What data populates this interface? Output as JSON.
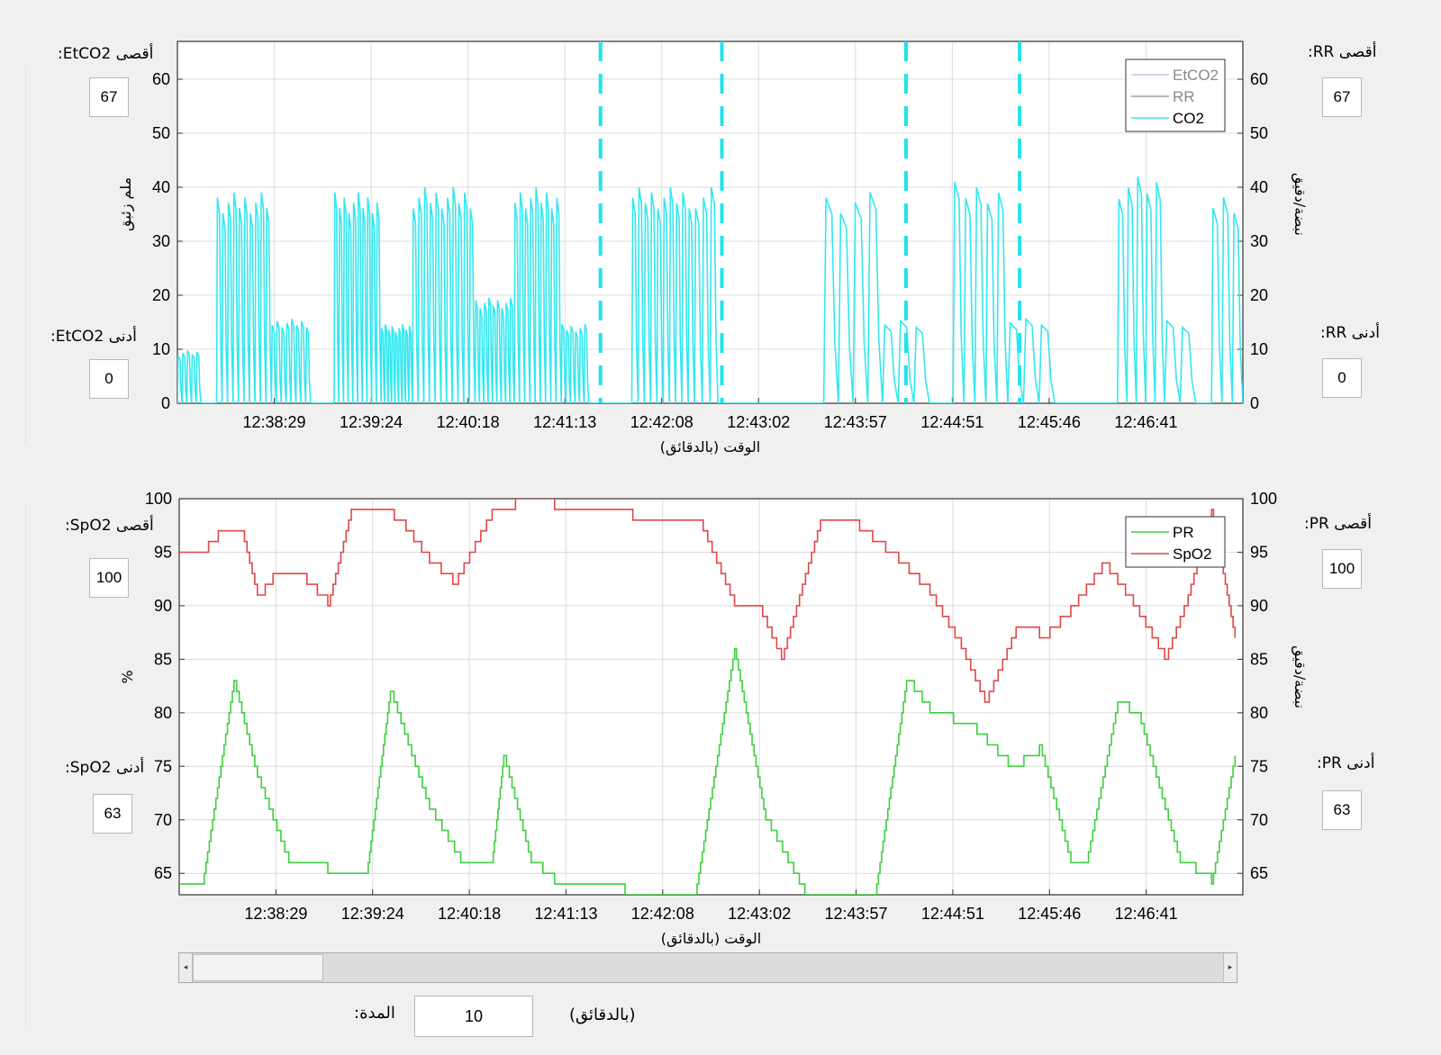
{
  "top_panel": {
    "etco2_max_label": "أقصى EtCO2:",
    "etco2_max_value": "67",
    "etco2_min_label": "أدنى EtCO2:",
    "etco2_min_value": "0",
    "rr_max_label": "أقصى RR:",
    "rr_max_value": "67",
    "rr_min_label": "أدنى RR:",
    "rr_min_value": "0"
  },
  "bottom_panel": {
    "spo2_max_label": "أقصى SpO2:",
    "spo2_max_value": "100",
    "spo2_min_label": "أدنى SpO2:",
    "spo2_min_value": "63",
    "pr_max_label": "أقصى PR:",
    "pr_max_value": "100",
    "pr_min_label": "أدنى PR:",
    "pr_min_value": "63"
  },
  "controls": {
    "duration_label": "المدة:",
    "duration_value": "10",
    "duration_unit": "(بالدقائق)"
  },
  "chart_data": [
    {
      "type": "line",
      "xlabel": "الوقت (بالدقائق)",
      "ylabel_left": "ملم زئبق",
      "ylabel_right": "نبضة/دقيق",
      "x_ticks": [
        "12:38:29",
        "12:39:24",
        "12:40:18",
        "12:41:13",
        "12:42:08",
        "12:43:02",
        "12:43:57",
        "12:44:51",
        "12:45:46",
        "12:46:41"
      ],
      "ylim": [
        0,
        67
      ],
      "yticks": [
        0,
        10,
        20,
        30,
        40,
        50,
        60
      ],
      "grid": true,
      "legend_position": "top-right",
      "legend": [
        "EtCO2",
        "RR",
        "CO2"
      ],
      "series": [
        {
          "name": "EtCO2",
          "color": "#c9c6ec",
          "values": []
        },
        {
          "name": "RR",
          "color": "#a0a0a0",
          "values": []
        },
        {
          "name": "CO2",
          "color": "#33e8f0",
          "bursts": [
            {
              "t_start": 0.0,
              "t_end": 0.3,
              "peak": 10,
              "cycles": 5
            },
            {
              "t_start": 0.5,
              "t_end": 1.2,
              "peak": 40,
              "cycles": 10
            },
            {
              "t_start": 1.2,
              "t_end": 1.7,
              "peak": 16,
              "cycles": 8
            },
            {
              "t_start": 2.0,
              "t_end": 2.6,
              "peak": 40,
              "cycles": 10
            },
            {
              "t_start": 2.6,
              "t_end": 3.0,
              "peak": 15,
              "cycles": 9
            },
            {
              "t_start": 3.0,
              "t_end": 3.8,
              "peak": 41,
              "cycles": 11
            },
            {
              "t_start": 3.8,
              "t_end": 4.3,
              "peak": 20,
              "cycles": 9
            },
            {
              "t_start": 4.3,
              "t_end": 4.9,
              "peak": 41,
              "cycles": 9
            },
            {
              "t_start": 4.9,
              "t_end": 5.25,
              "peak": 15,
              "cycles": 6
            },
            {
              "t_start": 5.8,
              "t_end": 6.6,
              "peak": 41,
              "cycles": 10
            },
            {
              "t_start": 6.6,
              "t_end": 6.9,
              "peak": 41,
              "cycles": 3
            },
            {
              "t_start": 8.25,
              "t_end": 9.0,
              "peak": 40,
              "cycles": 4
            },
            {
              "t_start": 9.0,
              "t_end": 9.6,
              "peak": 16,
              "cycles": 3
            },
            {
              "t_start": 9.9,
              "t_end": 10.6,
              "peak": 42,
              "cycles": 5
            },
            {
              "t_start": 10.6,
              "t_end": 11.2,
              "peak": 16,
              "cycles": 3
            },
            {
              "t_start": 12.0,
              "t_end": 12.6,
              "peak": 43,
              "cycles": 5
            },
            {
              "t_start": 12.6,
              "t_end": 13.0,
              "peak": 16,
              "cycles": 2
            },
            {
              "t_start": 13.2,
              "t_end": 13.6,
              "peak": 40,
              "cycles": 3
            }
          ]
        }
      ],
      "event_markers_x": [
        5.4,
        6.95,
        9.3,
        10.75
      ]
    },
    {
      "type": "line",
      "xlabel": "الوقت (بالدقائق)",
      "ylabel_left": "%",
      "ylabel_right": "نبضة/دقيق",
      "x_ticks": [
        "12:38:29",
        "12:39:24",
        "12:40:18",
        "12:41:13",
        "12:42:08",
        "12:43:02",
        "12:43:57",
        "12:44:51",
        "12:45:46",
        "12:46:41"
      ],
      "ylim": [
        63,
        100
      ],
      "yticks": [
        65,
        70,
        75,
        80,
        85,
        90,
        95,
        100
      ],
      "grid": true,
      "legend_position": "top-right",
      "legend": [
        "PR",
        "SpO2"
      ],
      "series": [
        {
          "name": "PR",
          "color": "#3ecf3e",
          "t": [
            0,
            0.3,
            0.7,
            1.0,
            1.4,
            1.9,
            2.4,
            2.7,
            3.2,
            3.6,
            4.0,
            4.15,
            4.5,
            4.8,
            5.3,
            5.7,
            6.2,
            6.6,
            7.1,
            7.5,
            8.0,
            8.5,
            8.9,
            9.3,
            9.6,
            10.2,
            10.6,
            11.0,
            11.4,
            11.6,
            12.0,
            12.3,
            12.8,
            13.2,
            13.5
          ],
          "values": [
            64,
            64,
            83,
            74,
            66,
            65,
            65,
            82,
            71,
            66,
            66,
            76,
            66,
            64,
            64,
            63,
            63,
            63,
            86,
            70,
            63,
            63,
            63,
            83,
            80,
            78,
            75,
            77,
            66,
            66,
            81,
            79,
            66,
            64,
            76
          ]
        },
        {
          "name": "SpO2",
          "color": "#e04848",
          "t": [
            0,
            0.25,
            0.5,
            0.8,
            1.0,
            1.2,
            1.5,
            1.9,
            2.2,
            2.6,
            2.9,
            3.2,
            3.5,
            4.0,
            4.3,
            4.8,
            5.3,
            5.8,
            6.3,
            6.7,
            7.1,
            7.4,
            7.7,
            8.2,
            8.7,
            9.2,
            9.6,
            10.0,
            10.3,
            10.7,
            11.0,
            11.4,
            11.8,
            12.2,
            12.6,
            12.9,
            13.2,
            13.5
          ],
          "values": [
            95,
            95,
            97,
            97,
            91,
            93,
            93,
            90,
            99,
            99,
            97,
            94,
            92,
            99,
            100,
            99,
            99,
            98,
            98,
            97,
            90,
            90,
            85,
            98,
            97,
            94,
            91,
            86,
            81,
            88,
            87,
            90,
            94,
            90,
            85,
            91,
            99,
            87
          ]
        }
      ]
    }
  ]
}
